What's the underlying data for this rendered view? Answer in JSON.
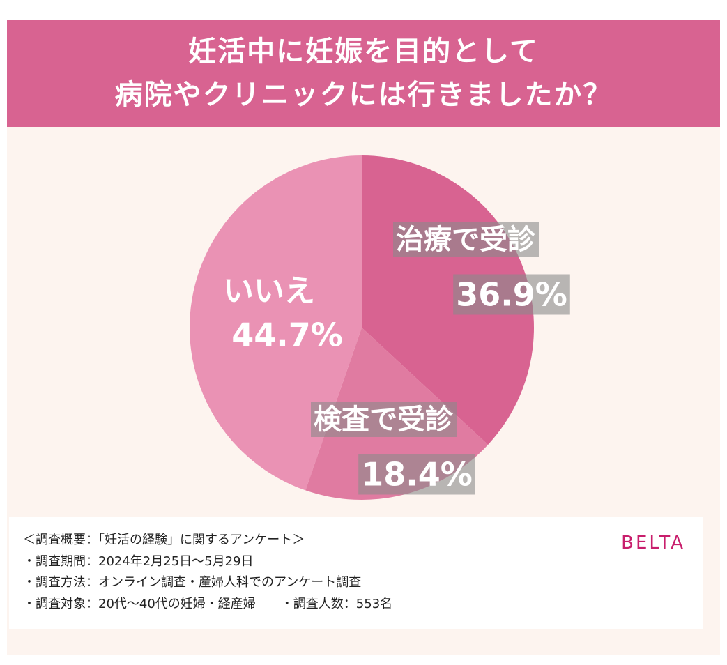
{
  "title": {
    "line1": "妊活中に妊娠を目的として",
    "line2": "病院やクリニックには行きましたか？"
  },
  "chart_data": {
    "type": "pie",
    "slices": [
      {
        "name": "治療で受診",
        "value": 36.9,
        "display": "36.9%",
        "color": "#d86391"
      },
      {
        "name": "検査で受診",
        "value": 18.4,
        "display": "18.4%",
        "color": "#e07ba1"
      },
      {
        "name": "いいえ",
        "value": 44.7,
        "display": "44.7%",
        "color": "#ea92b4"
      }
    ],
    "start": "12 o'clock",
    "direction": "clockwise"
  },
  "survey": {
    "lines": [
      "＜調査概要：「妊活の経験」に関するアンケート＞",
      "・調査期間：2024年2月25日〜5月29日",
      "・調査方法：オンライン調査・産婦人科でのアンケート調査",
      "・調査対象：20代〜40代の妊婦・経産婦　　・調査人数：553名"
    ]
  },
  "brand": "BELTA",
  "colors": {
    "title_band": "#d86391",
    "background": "#fdf4ef",
    "brand": "#c81e6c"
  }
}
